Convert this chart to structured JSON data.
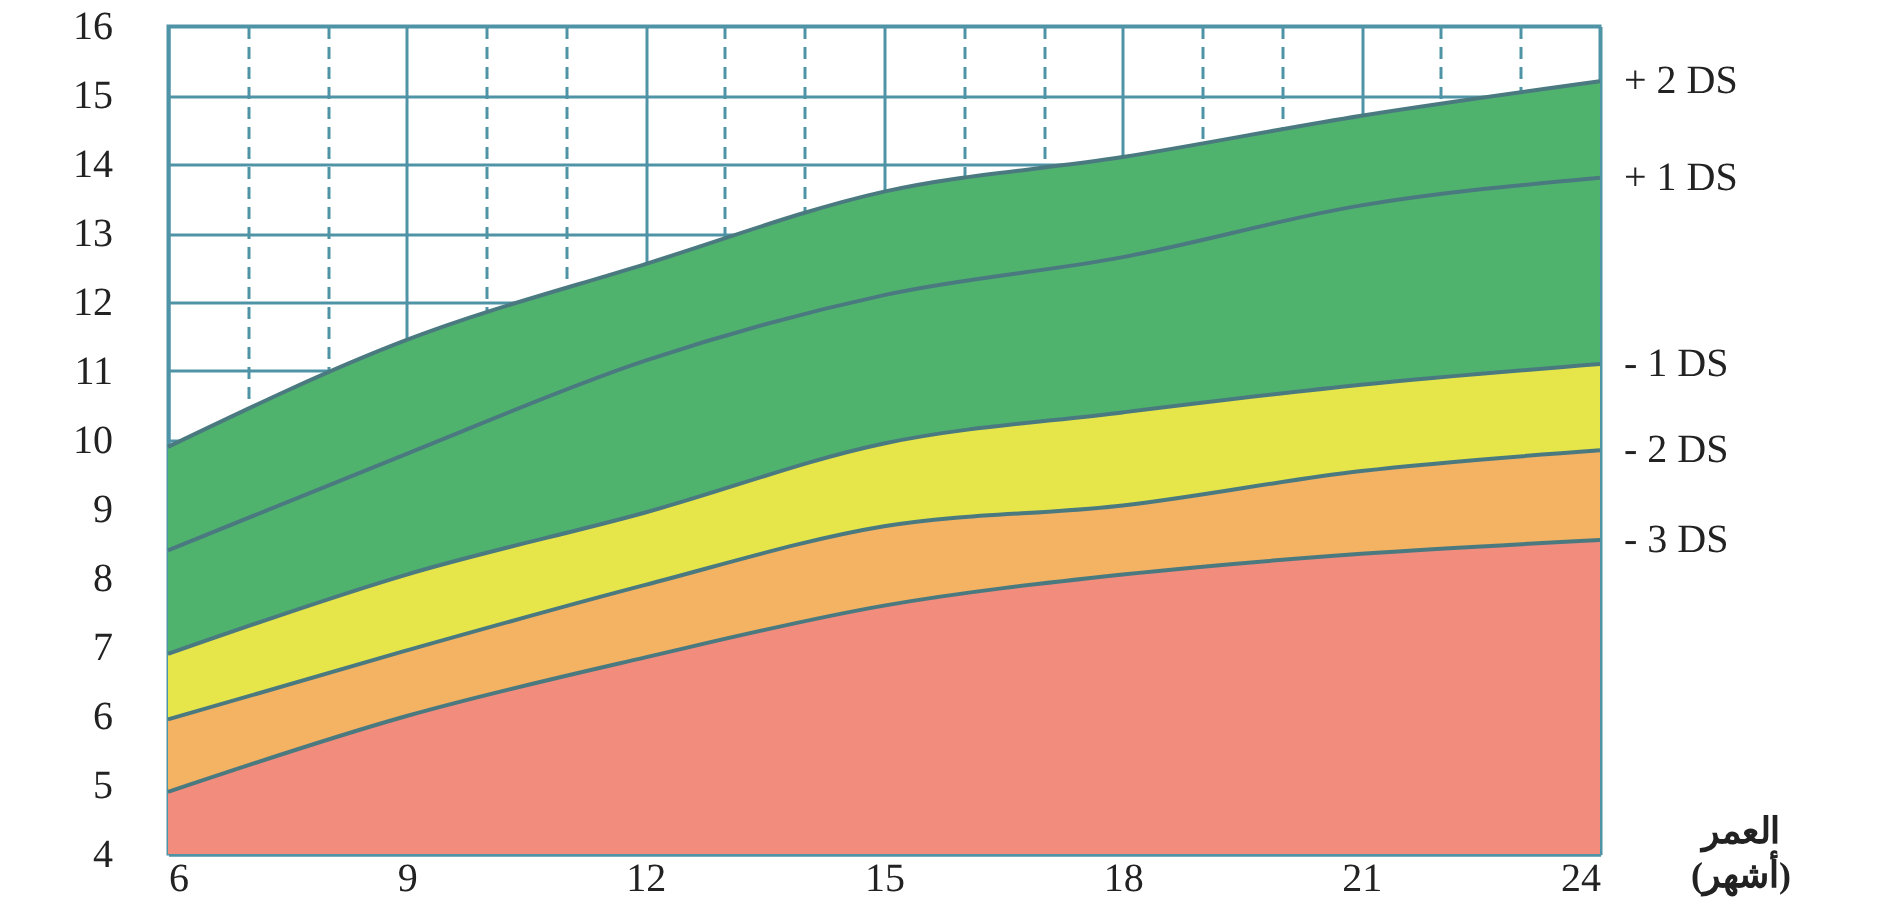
{
  "chart_data": {
    "type": "line",
    "xlabel": "العمر\n(أشهر)",
    "x": [
      6,
      9,
      12,
      15,
      18,
      21,
      24
    ],
    "xlim": [
      6,
      24
    ],
    "ylim": [
      4,
      16
    ],
    "xticks": [
      6,
      {
        "value": 7,
        "label": null
      },
      {
        "value": 8,
        "label": null
      },
      9,
      {
        "value": 10,
        "label": null
      },
      {
        "value": 11,
        "label": null
      },
      12,
      {
        "value": 13,
        "label": null
      },
      {
        "value": 14,
        "label": null
      },
      15,
      {
        "value": 16,
        "label": null
      },
      {
        "value": 17,
        "label": null
      },
      18,
      {
        "value": 19,
        "label": null
      },
      {
        "value": 20,
        "label": null
      },
      21,
      {
        "value": 22,
        "label": null
      },
      {
        "value": 23,
        "label": null
      },
      24
    ],
    "yticks": [
      4,
      5,
      6,
      7,
      8,
      9,
      10,
      11,
      12,
      13,
      14,
      15,
      16
    ],
    "grid": true,
    "marker": "none",
    "line_style": "solid",
    "series": [
      {
        "name": "+ 2 DS",
        "type": "area",
        "color": "#4fb36e",
        "values": [
          9.9,
          11.45,
          12.55,
          13.6,
          14.1,
          14.7,
          15.2
        ]
      },
      {
        "name": "+ 1 DS",
        "color": "#4a7a80",
        "values": [
          8.4,
          9.8,
          11.15,
          12.1,
          12.65,
          13.4,
          13.8
        ]
      },
      {
        "name": "- 1 DS",
        "type": "area",
        "color": "#e6e64a",
        "values": [
          6.9,
          8.05,
          8.95,
          9.95,
          10.4,
          10.8,
          11.1
        ]
      },
      {
        "name": "- 2 DS",
        "type": "area",
        "color": "#f4b263",
        "values": [
          5.95,
          6.95,
          7.9,
          8.75,
          9.05,
          9.55,
          9.85
        ]
      },
      {
        "name": "- 3 DS",
        "type": "area",
        "color": "#f28c7c",
        "values": [
          4.9,
          6.0,
          6.85,
          7.6,
          8.05,
          8.35,
          8.55
        ]
      }
    ]
  }
}
